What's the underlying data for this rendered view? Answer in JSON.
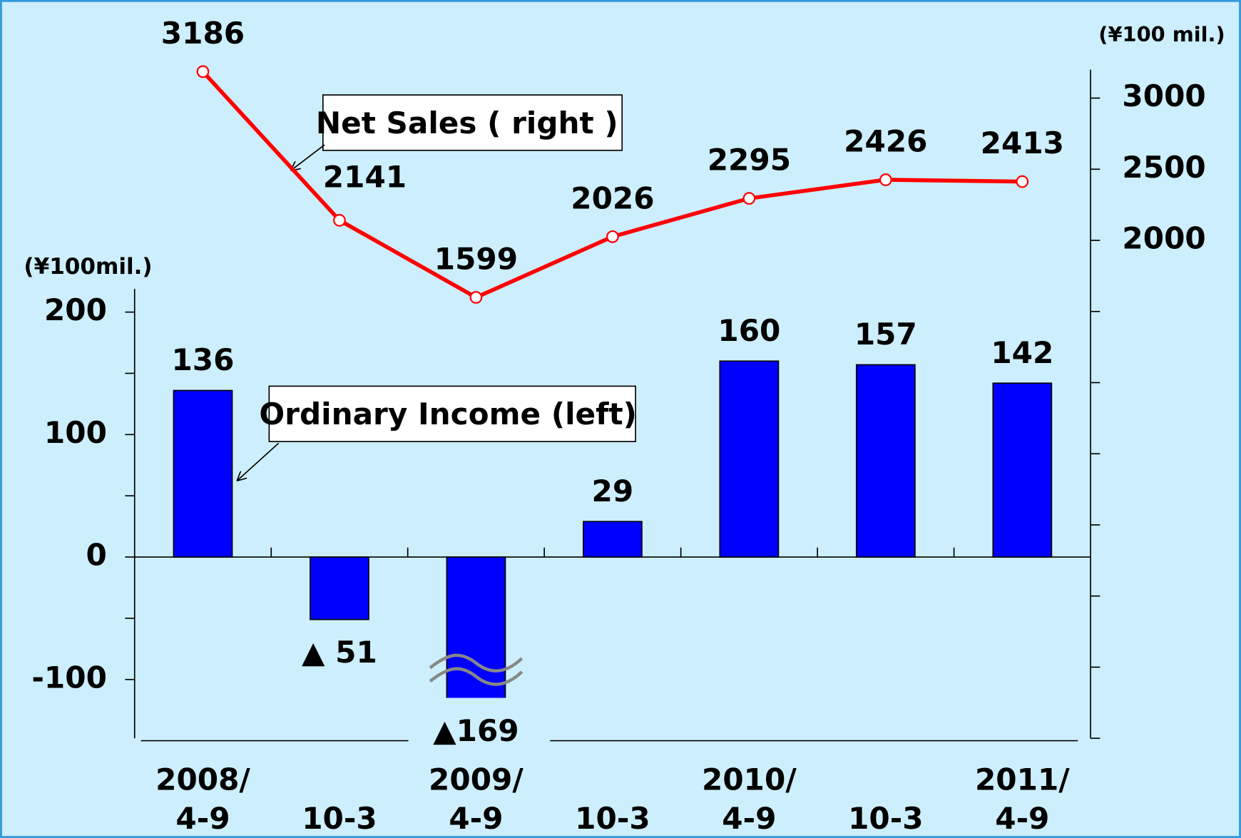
{
  "chart_data": {
    "type": "bar_line",
    "categories": [
      [
        "2008/",
        "4-9"
      ],
      [
        "10-3"
      ],
      [
        "2009/",
        "4-9"
      ],
      [
        "10-3"
      ],
      [
        "2010/",
        "4-9"
      ],
      [
        "10-3"
      ],
      [
        "2011/",
        "4-9"
      ]
    ],
    "series": [
      {
        "name": "Ordinary Income (left)",
        "type": "bar",
        "axis": "y",
        "color": "#0000ff",
        "values": [
          136,
          -51,
          -169,
          29,
          160,
          157,
          142
        ],
        "value_labels": [
          "136",
          "▲ 51",
          "▲169",
          "29",
          "160",
          "157",
          "142"
        ]
      },
      {
        "name": "Net Sales ( right )",
        "type": "line",
        "axis": "y2",
        "color": "#ff0000",
        "values": [
          3186,
          2141,
          1599,
          2026,
          2295,
          2426,
          2413
        ]
      }
    ],
    "y_unit": "(¥100mil.)",
    "y2_unit": "(¥100 mil.)",
    "ylim": [
      -148,
      219
    ],
    "yticks": [
      -100,
      0,
      100,
      200
    ],
    "minor_yticks": [
      -50,
      50,
      150
    ],
    "y2lim": [
      -1500,
      3200
    ],
    "y2ticks": [
      2000,
      2500,
      3000
    ],
    "minor_y2ticks": [
      -1500,
      -1000,
      -500,
      0,
      500,
      1000,
      1500
    ],
    "axis_break": -115
  }
}
